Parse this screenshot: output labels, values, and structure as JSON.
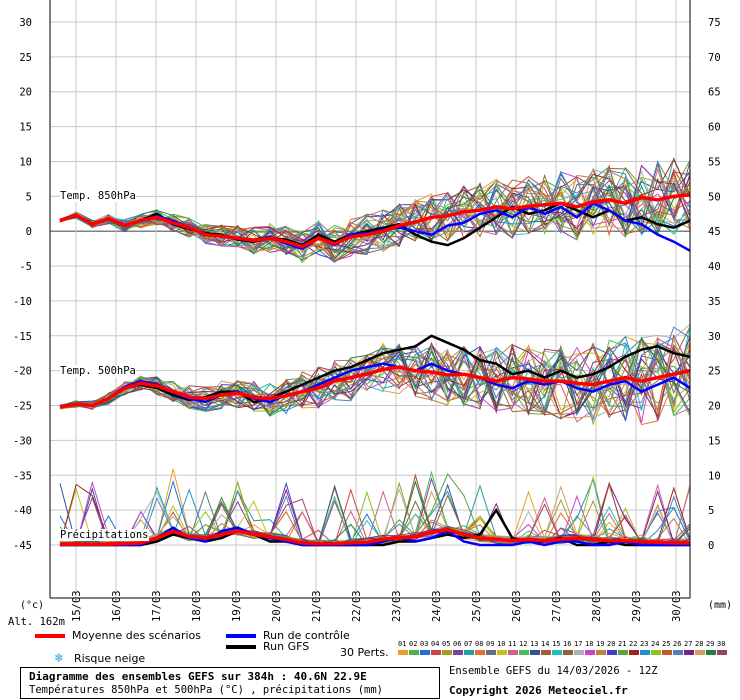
{
  "chart_data": {
    "type": "line",
    "title": "Diagramme des ensembles GEFS sur 384h : 40.6N 22.9E",
    "subtitle": "Températures 850hPa et 500hPa (°C) , précipitations (mm)",
    "left_axis": {
      "unit": "(°c)",
      "ticks": [
        30,
        25,
        20,
        15,
        10,
        5,
        0,
        -5,
        -10,
        -15,
        -20,
        -25,
        -30,
        -35,
        -40,
        -45
      ],
      "range": [
        -45,
        30
      ]
    },
    "right_axis": {
      "unit": "(mm)",
      "ticks": [
        75,
        70,
        65,
        60,
        55,
        50,
        45,
        40,
        35,
        30,
        25,
        20,
        15,
        10,
        5,
        0
      ],
      "range": [
        0,
        75
      ]
    },
    "x_dates": [
      "15/03",
      "16/03",
      "17/03",
      "18/03",
      "19/03",
      "20/03",
      "21/03",
      "22/03",
      "23/03",
      "24/03",
      "25/03",
      "26/03",
      "27/03",
      "28/03",
      "29/03",
      "30/03"
    ],
    "altitude": "Alt. 162m",
    "section_labels": {
      "t850": "Temp. 850hPa",
      "t500": "Temp. 500hPa",
      "precip": "Précipitations"
    },
    "series_labels": {
      "mean": "Moyenne des scénarios",
      "control": "Run de contrôle",
      "gfs": "Run GFS",
      "snow": "Risque neige",
      "perts": "30 Perts."
    },
    "perturbations": [
      "01",
      "02",
      "03",
      "04",
      "05",
      "06",
      "07",
      "08",
      "09",
      "10",
      "11",
      "12",
      "13",
      "14",
      "15",
      "16",
      "17",
      "18",
      "19",
      "20",
      "21",
      "22",
      "23",
      "24",
      "25",
      "26",
      "27",
      "28",
      "29",
      "30"
    ],
    "pert_colors": [
      "#e8a020",
      "#50b050",
      "#2070d0",
      "#d04040",
      "#a0a020",
      "#8040a0",
      "#20a0a0",
      "#e07030",
      "#607080",
      "#c0c020",
      "#d06090",
      "#40c060",
      "#3050a0",
      "#a06030",
      "#20c0c0",
      "#906030",
      "#b0b0b0",
      "#d040d0",
      "#c08040",
      "#4040c0",
      "#60a040",
      "#a02020",
      "#2090d0",
      "#90c020",
      "#c06020",
      "#5080c0",
      "#802080",
      "#d0a060",
      "#208040",
      "#a04060"
    ],
    "run_info": "Ensemble GEFS du 14/03/2026 - 12Z",
    "copyright": "Copyright 2026 Meteociel.fr",
    "t850": {
      "mean": [
        1.5,
        2.3,
        1.0,
        1.8,
        0.8,
        1.5,
        2.0,
        1.2,
        0.5,
        -0.5,
        -0.7,
        -1.0,
        -1.3,
        -1.0,
        -1.5,
        -2.2,
        -1.0,
        -1.8,
        -0.8,
        -0.5,
        0.0,
        0.8,
        1.3,
        2.0,
        2.2,
        2.8,
        3.0,
        3.5,
        3.2,
        3.6,
        3.8,
        4.0,
        3.5,
        4.2,
        4.5,
        4.0,
        4.8,
        4.5,
        5.0,
        5.2
      ],
      "control": [
        1.5,
        2.2,
        1.0,
        1.8,
        0.8,
        1.5,
        2.2,
        1.5,
        0.5,
        -0.5,
        -0.8,
        -1.0,
        -1.2,
        -0.8,
        -1.8,
        -2.5,
        -1.0,
        -2.0,
        -0.5,
        -0.3,
        0.2,
        0.5,
        0.0,
        -0.5,
        0.8,
        1.2,
        2.5,
        3.0,
        2.0,
        3.5,
        2.5,
        3.5,
        2.0,
        4.0,
        3.0,
        1.5,
        1.0,
        -0.5,
        -1.5,
        -2.8
      ],
      "gfs": [
        1.5,
        2.2,
        1.0,
        1.8,
        0.8,
        1.5,
        2.5,
        1.0,
        0.3,
        -0.3,
        -0.5,
        -1.2,
        -1.5,
        -1.0,
        -1.2,
        -2.0,
        -0.5,
        -1.5,
        -0.5,
        0.0,
        0.5,
        1.0,
        -0.5,
        -1.5,
        -2.0,
        -1.0,
        0.5,
        2.0,
        3.5,
        2.5,
        3.0,
        4.0,
        3.0,
        2.0,
        3.0,
        1.5,
        2.0,
        1.0,
        0.5,
        1.5
      ]
    },
    "t500": {
      "mean": [
        -25.2,
        -24.8,
        -25.0,
        -24.0,
        -22.5,
        -21.8,
        -22.2,
        -23.0,
        -23.8,
        -24.0,
        -23.5,
        -23.2,
        -23.8,
        -24.0,
        -23.6,
        -23.0,
        -22.5,
        -21.5,
        -21.0,
        -20.5,
        -19.8,
        -19.5,
        -20.0,
        -20.2,
        -20.6,
        -20.5,
        -21.0,
        -21.5,
        -21.0,
        -21.2,
        -21.5,
        -21.5,
        -21.8,
        -22.0,
        -21.5,
        -21.0,
        -21.5,
        -21.0,
        -20.5,
        -20.0
      ],
      "control": [
        -25.2,
        -24.8,
        -25.0,
        -24.0,
        -22.3,
        -21.5,
        -22.0,
        -23.2,
        -24.0,
        -24.5,
        -23.5,
        -23.0,
        -24.0,
        -24.5,
        -23.5,
        -23.0,
        -22.0,
        -21.0,
        -20.0,
        -19.5,
        -19.0,
        -19.5,
        -20.0,
        -19.0,
        -20.0,
        -20.5,
        -21.0,
        -22.0,
        -22.5,
        -21.5,
        -22.0,
        -21.5,
        -22.5,
        -23.0,
        -22.0,
        -21.5,
        -23.0,
        -22.0,
        -21.0,
        -22.5
      ],
      "gfs": [
        -25.2,
        -24.8,
        -25.0,
        -24.0,
        -22.5,
        -22.0,
        -22.5,
        -23.5,
        -24.2,
        -23.8,
        -23.0,
        -23.0,
        -24.5,
        -24.0,
        -23.0,
        -22.0,
        -21.0,
        -20.0,
        -19.5,
        -18.5,
        -17.5,
        -17.0,
        -16.5,
        -15.0,
        -16.0,
        -17.0,
        -18.5,
        -19.0,
        -20.5,
        -20.0,
        -21.0,
        -20.0,
        -21.0,
        -20.5,
        -19.5,
        -18.0,
        -17.0,
        -16.5,
        -17.5,
        -18.0
      ]
    },
    "precip": {
      "mean": [
        0.1,
        0.1,
        0.1,
        0.1,
        0.2,
        0.3,
        1.0,
        2.0,
        1.2,
        1.0,
        1.5,
        2.0,
        1.5,
        1.2,
        0.8,
        0.3,
        0.2,
        0.2,
        0.3,
        0.4,
        0.8,
        1.0,
        1.2,
        1.8,
        2.2,
        1.5,
        1.0,
        0.8,
        0.6,
        0.8,
        0.6,
        0.8,
        1.0,
        0.8,
        0.6,
        0.6,
        0.5,
        0.4,
        0.3,
        0.3
      ],
      "control": [
        0,
        0,
        0,
        0,
        0,
        0,
        1.0,
        2.5,
        1.0,
        0.5,
        2.0,
        2.5,
        1.5,
        1.0,
        0.5,
        0,
        0,
        0,
        0,
        0,
        0.5,
        1.0,
        0.5,
        1.0,
        2.0,
        0.5,
        0,
        0,
        0,
        0.5,
        0,
        0.5,
        0.5,
        0,
        0,
        0.5,
        0,
        0,
        0,
        0
      ],
      "gfs": [
        0,
        0,
        0,
        0,
        0,
        0,
        0.5,
        1.5,
        1.0,
        0.5,
        1.0,
        2.0,
        1.5,
        0.5,
        0.5,
        0,
        0,
        0,
        0,
        0,
        0,
        0.5,
        0.5,
        1.0,
        1.5,
        1.0,
        1.5,
        5.0,
        1.0,
        0.5,
        0.5,
        1.0,
        0,
        0,
        0.5,
        0,
        0,
        0,
        0,
        0
      ]
    }
  }
}
